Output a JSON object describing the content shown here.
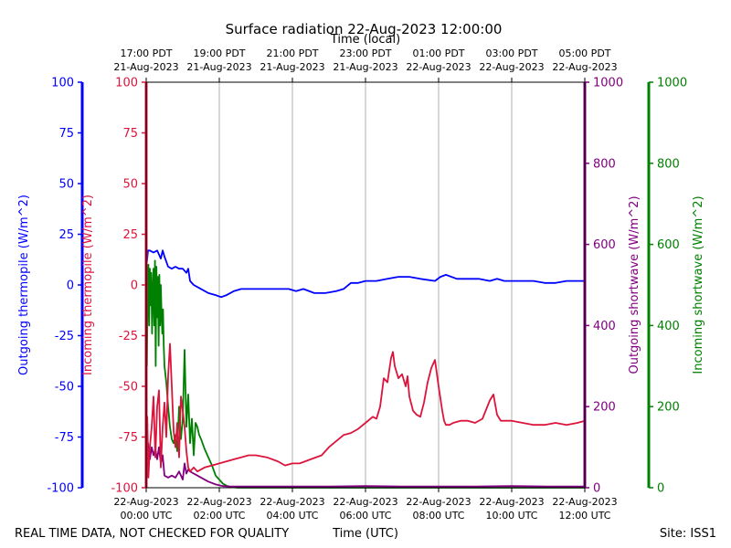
{
  "chart_data": {
    "type": "line",
    "title": "Surface radiation 22-Aug-2023 12:00:00",
    "top_xlabel": "Time (local)",
    "xlabel": "Time (UTC)",
    "footer_left": "REAL TIME DATA, NOT CHECKED FOR QUALITY",
    "footer_right": "Site: ISS1",
    "x_unit": "hours since 22-Aug-2023 00:00 UTC",
    "xlim": [
      0,
      12
    ],
    "x_ticks": [
      {
        "x": 0,
        "line1": "22-Aug-2023",
        "line2": "00:00 UTC"
      },
      {
        "x": 2,
        "line1": "22-Aug-2023",
        "line2": "02:00 UTC"
      },
      {
        "x": 4,
        "line1": "22-Aug-2023",
        "line2": "04:00 UTC"
      },
      {
        "x": 6,
        "line1": "22-Aug-2023",
        "line2": "06:00 UTC"
      },
      {
        "x": 8,
        "line1": "22-Aug-2023",
        "line2": "08:00 UTC"
      },
      {
        "x": 10,
        "line1": "22-Aug-2023",
        "line2": "10:00 UTC"
      },
      {
        "x": 12,
        "line1": "22-Aug-2023",
        "line2": "12:00 UTC"
      }
    ],
    "top_ticks": [
      {
        "x": 0,
        "line1": "17:00 PDT",
        "line2": "21-Aug-2023"
      },
      {
        "x": 2,
        "line1": "19:00 PDT",
        "line2": "21-Aug-2023"
      },
      {
        "x": 4,
        "line1": "21:00 PDT",
        "line2": "21-Aug-2023"
      },
      {
        "x": 6,
        "line1": "23:00 PDT",
        "line2": "21-Aug-2023"
      },
      {
        "x": 8,
        "line1": "01:00 PDT",
        "line2": "22-Aug-2023"
      },
      {
        "x": 10,
        "line1": "03:00 PDT",
        "line2": "22-Aug-2023"
      },
      {
        "x": 12,
        "line1": "05:00 PDT",
        "line2": "22-Aug-2023"
      }
    ],
    "axes": [
      {
        "id": "outgoing_thermopile",
        "label": "Outgoing thermopile (W/m^2)",
        "color": "#0000ff",
        "side": "left-outer",
        "ylim": [
          -100,
          100
        ],
        "ticks": [
          "100",
          "75",
          "50",
          "25",
          "0",
          "-25",
          "-50",
          "-75",
          "-100"
        ]
      },
      {
        "id": "incoming_thermopile",
        "label": "Incoming thermopile (W/m^2)",
        "color": "#dc143c",
        "side": "left-inner",
        "ylim": [
          -100,
          100
        ],
        "ticks": [
          "100",
          "75",
          "50",
          "25",
          "0",
          "-25",
          "-50",
          "-75",
          "-100"
        ]
      },
      {
        "id": "outgoing_shortwave",
        "label": "Outgoing shortwave (W/m^2)",
        "color": "#800080",
        "side": "right-inner",
        "ylim": [
          0,
          1000
        ],
        "ticks": [
          "1000",
          "800",
          "600",
          "400",
          "200",
          "0"
        ]
      },
      {
        "id": "incoming_shortwave",
        "label": "Incoming shortwave (W/m^2)",
        "color": "#008000",
        "side": "right-outer",
        "ylim": [
          0,
          1000
        ],
        "ticks": [
          "1000",
          "800",
          "600",
          "400",
          "200",
          "0"
        ]
      }
    ],
    "series": [
      {
        "name": "Outgoing thermopile",
        "axis": "outgoing_thermopile",
        "color": "#0000ff",
        "x": [
          0,
          0.05,
          0.1,
          0.2,
          0.3,
          0.4,
          0.45,
          0.5,
          0.6,
          0.7,
          0.8,
          0.9,
          1.0,
          1.1,
          1.15,
          1.2,
          1.3,
          1.5,
          1.7,
          1.9,
          2.05,
          2.2,
          2.4,
          2.6,
          2.8,
          3.0,
          3.3,
          3.6,
          3.9,
          4.1,
          4.3,
          4.6,
          4.9,
          5.2,
          5.4,
          5.6,
          5.8,
          6.0,
          6.3,
          6.6,
          6.9,
          7.2,
          7.5,
          7.9,
          8.05,
          8.2,
          8.5,
          8.8,
          9.1,
          9.4,
          9.6,
          9.8,
          10.0,
          10.3,
          10.6,
          10.9,
          11.2,
          11.5,
          11.8,
          12.0
        ],
        "y": [
          8,
          17,
          17,
          16,
          17,
          13,
          17,
          14,
          9,
          8,
          9,
          8,
          8,
          6,
          8,
          2,
          0,
          -2,
          -4,
          -5,
          -6,
          -5,
          -3,
          -2,
          -2,
          -2,
          -2,
          -2,
          -2,
          -3,
          -2,
          -4,
          -4,
          -3,
          -2,
          1,
          1,
          2,
          2,
          3,
          4,
          4,
          3,
          2,
          4,
          5,
          3,
          3,
          3,
          2,
          3,
          2,
          2,
          2,
          2,
          1,
          1,
          2,
          2,
          2
        ]
      },
      {
        "name": "Incoming thermopile",
        "axis": "incoming_thermopile",
        "color": "#dc143c",
        "x": [
          0,
          0.03,
          0.06,
          0.1,
          0.15,
          0.2,
          0.25,
          0.3,
          0.35,
          0.4,
          0.45,
          0.5,
          0.55,
          0.6,
          0.65,
          0.7,
          0.75,
          0.8,
          0.85,
          0.9,
          0.95,
          1.0,
          1.05,
          1.1,
          1.15,
          1.2,
          1.3,
          1.4,
          1.6,
          1.8,
          2.0,
          2.2,
          2.4,
          2.6,
          2.8,
          3.0,
          3.3,
          3.6,
          3.8,
          4.0,
          4.2,
          4.5,
          4.8,
          5.0,
          5.2,
          5.4,
          5.6,
          5.8,
          6.0,
          6.2,
          6.3,
          6.4,
          6.5,
          6.6,
          6.7,
          6.75,
          6.8,
          6.9,
          7.0,
          7.1,
          7.15,
          7.2,
          7.3,
          7.4,
          7.5,
          7.6,
          7.7,
          7.8,
          7.9,
          8.0,
          8.1,
          8.15,
          8.2,
          8.3,
          8.4,
          8.6,
          8.8,
          9.0,
          9.2,
          9.4,
          9.5,
          9.6,
          9.7,
          9.8,
          9.9,
          10.0,
          10.3,
          10.6,
          10.9,
          11.2,
          11.5,
          11.8,
          12.0
        ],
        "y": [
          -90,
          -65,
          -95,
          -80,
          -70,
          -55,
          -85,
          -60,
          -52,
          -90,
          -70,
          -58,
          -75,
          -45,
          -29,
          -50,
          -72,
          -80,
          -68,
          -85,
          -55,
          -62,
          -70,
          -82,
          -90,
          -92,
          -90,
          -92,
          -90,
          -89,
          -88,
          -87,
          -86,
          -85,
          -84,
          -84,
          -85,
          -87,
          -89,
          -88,
          -88,
          -86,
          -84,
          -80,
          -77,
          -74,
          -73,
          -71,
          -68,
          -65,
          -66,
          -60,
          -46,
          -48,
          -36,
          -33,
          -40,
          -46,
          -44,
          -50,
          -45,
          -55,
          -62,
          -64,
          -65,
          -58,
          -48,
          -41,
          -37,
          -50,
          -62,
          -67,
          -69,
          -69,
          -68,
          -67,
          -67,
          -68,
          -66,
          -57,
          -54,
          -64,
          -67,
          -67,
          -67,
          -67,
          -68,
          -69,
          -69,
          -68,
          -69,
          -68,
          -67
        ]
      },
      {
        "name": "Outgoing shortwave",
        "axis": "outgoing_shortwave",
        "color": "#800080",
        "x": [
          0,
          0.05,
          0.1,
          0.15,
          0.2,
          0.25,
          0.3,
          0.35,
          0.4,
          0.45,
          0.5,
          0.6,
          0.7,
          0.8,
          0.9,
          1.0,
          1.05,
          1.1,
          1.15,
          1.2,
          1.3,
          1.4,
          1.5,
          1.7,
          1.9,
          2.1,
          2.3,
          3.0,
          4.0,
          5.0,
          6.0,
          7.0,
          8.0,
          9.0,
          10.0,
          11.0,
          12.0
        ],
        "y": [
          80,
          110,
          70,
          100,
          80,
          95,
          70,
          100,
          60,
          80,
          30,
          25,
          30,
          25,
          40,
          20,
          60,
          35,
          45,
          40,
          35,
          30,
          25,
          15,
          8,
          4,
          3,
          3,
          3,
          3,
          4,
          3,
          3,
          3,
          4,
          3,
          3
        ]
      },
      {
        "name": "Incoming shortwave",
        "axis": "incoming_shortwave",
        "color": "#008000",
        "x": [
          0,
          0.02,
          0.04,
          0.06,
          0.08,
          0.1,
          0.12,
          0.14,
          0.16,
          0.18,
          0.2,
          0.22,
          0.24,
          0.26,
          0.28,
          0.3,
          0.32,
          0.34,
          0.36,
          0.38,
          0.4,
          0.42,
          0.44,
          0.46,
          0.48,
          0.5,
          0.55,
          0.6,
          0.65,
          0.7,
          0.75,
          0.8,
          0.85,
          0.9,
          0.95,
          1.0,
          1.05,
          1.1,
          1.15,
          1.2,
          1.25,
          1.3,
          1.35,
          1.4,
          1.45,
          1.5,
          1.6,
          1.7,
          1.8,
          1.9,
          2.0,
          2.1,
          2.2,
          2.3,
          2.5,
          3.0,
          4.0,
          5.0,
          6.0,
          7.0,
          8.0,
          9.0,
          10.0,
          11.0,
          12.0
        ],
        "y": [
          680,
          300,
          500,
          550,
          400,
          540,
          450,
          530,
          380,
          480,
          540,
          400,
          560,
          300,
          545,
          420,
          520,
          350,
          525,
          400,
          500,
          430,
          380,
          440,
          350,
          300,
          260,
          200,
          150,
          120,
          110,
          130,
          90,
          200,
          120,
          170,
          340,
          150,
          230,
          110,
          170,
          80,
          160,
          150,
          130,
          120,
          95,
          75,
          55,
          30,
          20,
          10,
          5,
          2,
          0,
          0,
          0,
          0,
          0,
          0,
          0,
          0,
          0,
          0,
          0
        ]
      }
    ]
  }
}
